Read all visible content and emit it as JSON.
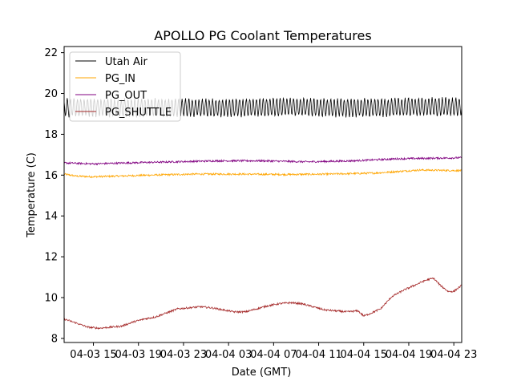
{
  "chart_data": {
    "type": "line",
    "title": "APOLLO PG Coolant Temperatures",
    "xlabel": "Date (GMT)",
    "ylabel": "Temperature (C)",
    "xlim": [
      12.4,
      47.7
    ],
    "ylim": [
      7.8,
      22.3
    ],
    "x_unit": "hours since 04-03 00:00 GMT",
    "xticks": [
      {
        "value": 15,
        "label": "04-03 15"
      },
      {
        "value": 19,
        "label": "04-03 19"
      },
      {
        "value": 23,
        "label": "04-03 23"
      },
      {
        "value": 27,
        "label": "04-04 03"
      },
      {
        "value": 31,
        "label": "04-04 07"
      },
      {
        "value": 35,
        "label": "04-04 11"
      },
      {
        "value": 39,
        "label": "04-04 15"
      },
      {
        "value": 43,
        "label": "04-04 19"
      },
      {
        "value": 47,
        "label": "04-04 23"
      }
    ],
    "yticks": [
      {
        "value": 8,
        "label": "8"
      },
      {
        "value": 10,
        "label": "10"
      },
      {
        "value": 12,
        "label": "12"
      },
      {
        "value": 14,
        "label": "14"
      },
      {
        "value": 16,
        "label": "16"
      },
      {
        "value": 18,
        "label": "18"
      },
      {
        "value": 20,
        "label": "20"
      },
      {
        "value": 22,
        "label": "22"
      }
    ],
    "legend_position": "top-left",
    "series": [
      {
        "name": "Utah Air",
        "color": "#000000",
        "oscillation": {
          "amplitude": 0.42,
          "period_hours": 0.3
        },
        "x": [
          12.4,
          16,
          20,
          24,
          28,
          32,
          36,
          40,
          44,
          47.7
        ],
        "y": [
          19.3,
          19.3,
          19.3,
          19.3,
          19.3,
          19.35,
          19.3,
          19.3,
          19.35,
          19.35
        ]
      },
      {
        "name": "PG_IN",
        "color": "#ffa500",
        "x": [
          12.4,
          13.5,
          15,
          17,
          20,
          24,
          28,
          32,
          36,
          40,
          44,
          47.7
        ],
        "y": [
          16.05,
          15.95,
          15.92,
          15.95,
          16.0,
          16.05,
          16.05,
          16.03,
          16.05,
          16.1,
          16.25,
          16.22
        ]
      },
      {
        "name": "PG_OUT",
        "color": "#800080",
        "x": [
          12.4,
          15,
          18,
          22,
          26,
          30,
          34,
          38,
          42,
          47.7
        ],
        "y": [
          16.6,
          16.55,
          16.6,
          16.65,
          16.7,
          16.7,
          16.65,
          16.7,
          16.8,
          16.85
        ]
      },
      {
        "name": "PG_SHUTTLE",
        "color": "#a52a2a",
        "x": [
          12.4,
          13.5,
          14.5,
          15.5,
          16.5,
          17.5,
          18.5,
          19.5,
          20.5,
          21.5,
          22.5,
          23.5,
          24.5,
          25.5,
          26.5,
          27.5,
          28.5,
          29.5,
          30.5,
          31.5,
          32.5,
          33.5,
          34.5,
          35.5,
          36.5,
          37.5,
          38.5,
          39,
          39.5,
          40.5,
          41.5,
          42.5,
          43.5,
          44.5,
          45.2,
          45.8,
          46.5,
          47,
          47.7
        ],
        "y": [
          8.95,
          8.75,
          8.55,
          8.5,
          8.55,
          8.6,
          8.8,
          8.95,
          9.05,
          9.25,
          9.45,
          9.5,
          9.55,
          9.5,
          9.4,
          9.3,
          9.3,
          9.45,
          9.6,
          9.7,
          9.75,
          9.7,
          9.55,
          9.4,
          9.35,
          9.3,
          9.35,
          9.1,
          9.2,
          9.45,
          10.05,
          10.35,
          10.6,
          10.85,
          10.95,
          10.6,
          10.3,
          10.3,
          10.6
        ]
      }
    ]
  }
}
